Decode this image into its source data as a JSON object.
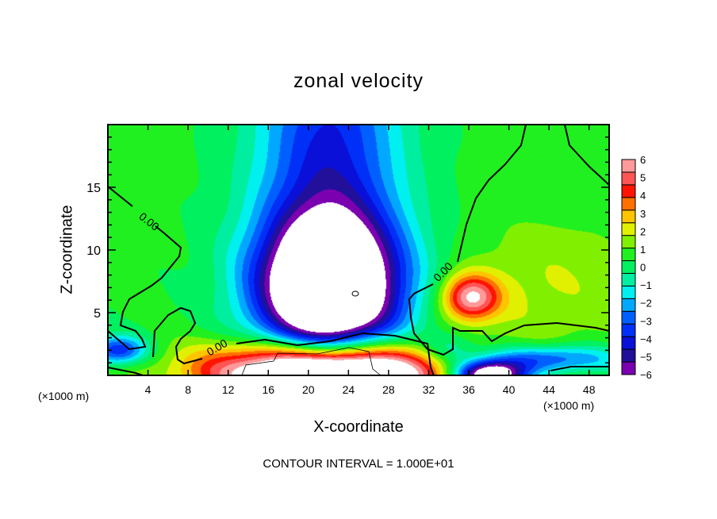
{
  "chart_data": {
    "type": "heatmap",
    "title": "zonal velocity",
    "xlabel": "X-coordinate",
    "ylabel": "Z-coordinate",
    "x_units": "(×1000 m)",
    "y_units": "(×1000 m)",
    "xlim": [
      0,
      50
    ],
    "ylim": [
      0,
      20
    ],
    "x_ticks": [
      4,
      8,
      12,
      16,
      20,
      24,
      28,
      32,
      36,
      40,
      44,
      48
    ],
    "y_ticks": [
      5,
      10,
      15
    ],
    "colorbar": {
      "ticks": [
        6,
        5,
        4,
        3,
        2,
        1,
        0,
        -1,
        -2,
        -3,
        -4,
        -5,
        -6
      ],
      "range": [
        -6,
        6
      ],
      "colors": [
        "#7a00b0",
        "#22109a",
        "#0a10d8",
        "#0030f8",
        "#0060ff",
        "#00a8ff",
        "#00f0f0",
        "#00eea0",
        "#00f060",
        "#20f020",
        "#80f000",
        "#e0f000",
        "#ffc400",
        "#ff7000",
        "#ff1400",
        "#ff5555",
        "#ff9a9a"
      ]
    },
    "contour_label": "0.00",
    "footnote": "CONTOUR INTERVAL = 1.000E+01",
    "field_features": [
      {
        "x": 22,
        "z": 7,
        "amp": -11,
        "sx": 5,
        "sz": 4
      },
      {
        "x": 22,
        "z": 18,
        "amp": -4.5,
        "sx": 5,
        "sz": 8
      },
      {
        "x": 36.2,
        "z": 6.2,
        "amp": 5.5,
        "sx": 2,
        "sz": 1.3
      },
      {
        "x": 44,
        "z": 7,
        "amp": 1.3,
        "sx": 6,
        "sz": 4
      },
      {
        "x": 22,
        "z": 0.3,
        "amp": 12,
        "sx": 8,
        "sz": 1.6
      },
      {
        "x": 1,
        "z": 2,
        "amp": -4.5,
        "sx": 2,
        "sz": 0.8
      },
      {
        "x": 44,
        "z": 1.3,
        "amp": -4,
        "sx": 5,
        "sz": 0.8
      },
      {
        "x": 38,
        "z": 0,
        "amp": -10,
        "sx": 2.5,
        "sz": 0.8
      },
      {
        "x": 34,
        "z": 2,
        "amp": -2.5,
        "sx": 2,
        "sz": 1
      }
    ],
    "background_value": 0.5
  }
}
